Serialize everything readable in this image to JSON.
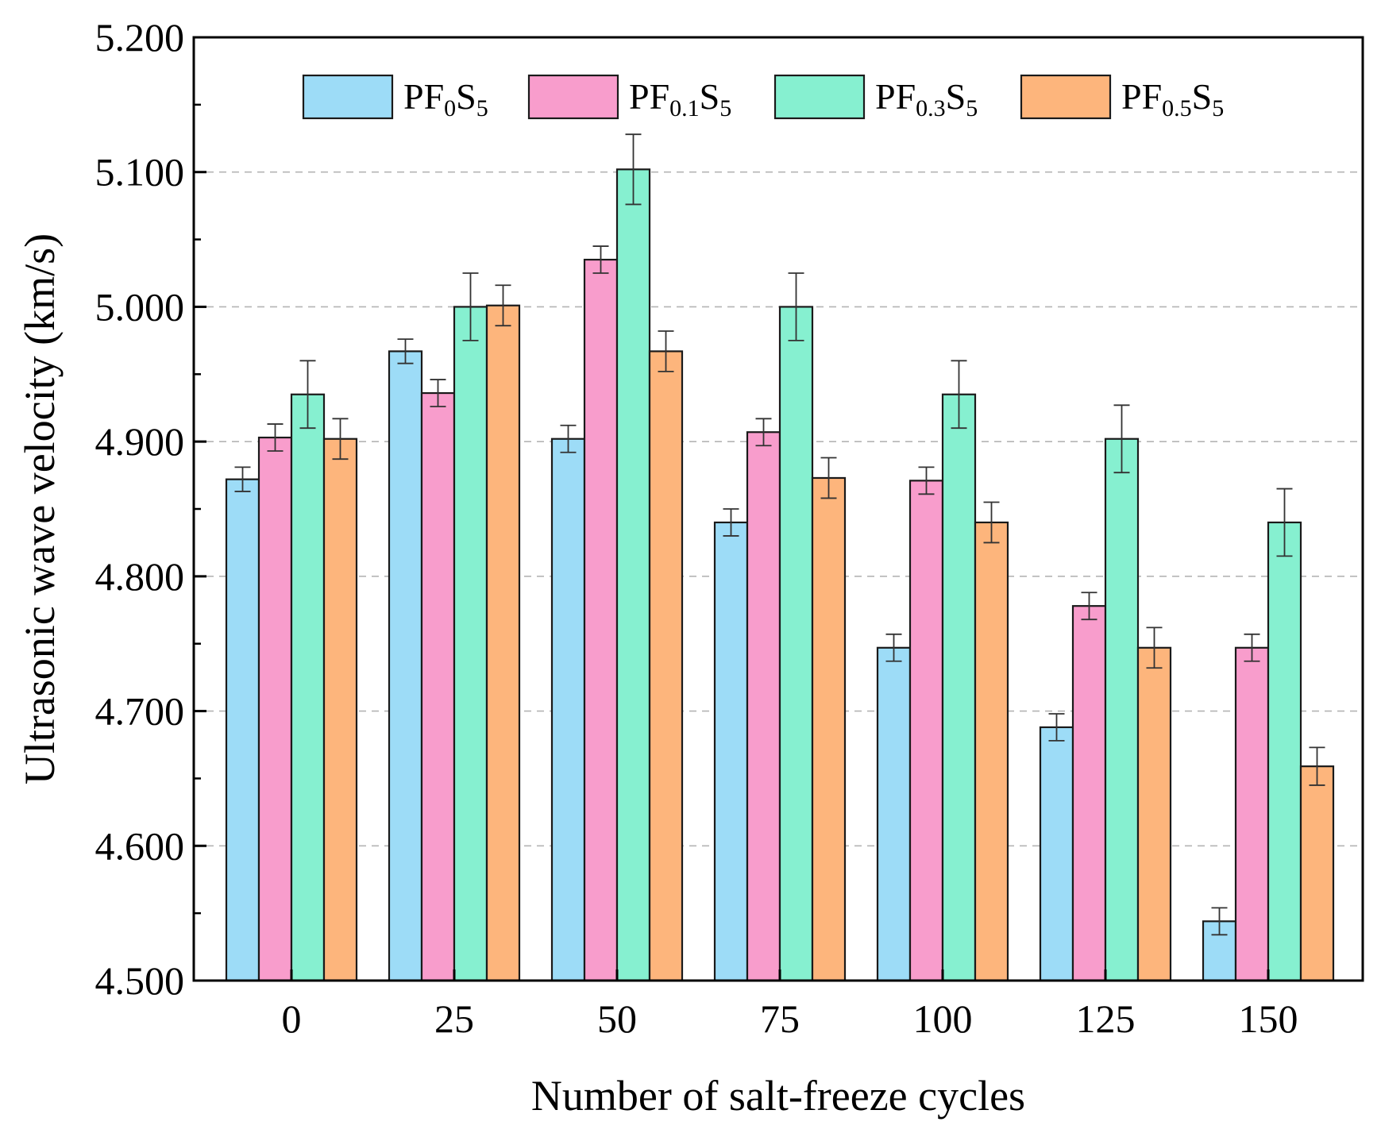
{
  "chart_data": {
    "type": "bar",
    "title": "",
    "xlabel": "Number of salt-freeze cycles",
    "ylabel": "Ultrasonic wave velocity (km/s)",
    "ylim": [
      4.5,
      5.2
    ],
    "y_ticks": [
      "4.500",
      "4.600",
      "4.700",
      "4.800",
      "4.900",
      "5.000",
      "5.100",
      "5.200"
    ],
    "y_tick_values": [
      4.5,
      4.6,
      4.7,
      4.8,
      4.9,
      5.0,
      5.1,
      5.2
    ],
    "grid": "horizontal dashed",
    "legend_position": "top",
    "categories": [
      "0",
      "25",
      "50",
      "75",
      "100",
      "125",
      "150"
    ],
    "series": [
      {
        "name": "PF0S5",
        "label_parts": [
          {
            "t": "PF",
            "sub": false
          },
          {
            "t": "0",
            "sub": true
          },
          {
            "t": "S",
            "sub": false
          },
          {
            "t": "5",
            "sub": true
          }
        ],
        "color": "#9ddcf7",
        "values": [
          4.872,
          4.967,
          4.902,
          4.84,
          4.747,
          4.688,
          4.544
        ],
        "errors": [
          0.009,
          0.009,
          0.01,
          0.01,
          0.01,
          0.01,
          0.01
        ]
      },
      {
        "name": "PF0.1S5",
        "label_parts": [
          {
            "t": "PF",
            "sub": false
          },
          {
            "t": "0.1",
            "sub": true
          },
          {
            "t": "S",
            "sub": false
          },
          {
            "t": "5",
            "sub": true
          }
        ],
        "color": "#f89dcc",
        "values": [
          4.903,
          4.936,
          5.035,
          4.907,
          4.871,
          4.778,
          4.747
        ],
        "errors": [
          0.01,
          0.01,
          0.01,
          0.01,
          0.01,
          0.01,
          0.01
        ]
      },
      {
        "name": "PF0.3S5",
        "label_parts": [
          {
            "t": "PF",
            "sub": false
          },
          {
            "t": "0.3",
            "sub": true
          },
          {
            "t": "S",
            "sub": false
          },
          {
            "t": "5",
            "sub": true
          }
        ],
        "color": "#86f0d0",
        "values": [
          4.935,
          5.0,
          5.102,
          5.0,
          4.935,
          4.902,
          4.84
        ],
        "errors": [
          0.025,
          0.025,
          0.026,
          0.025,
          0.025,
          0.025,
          0.025
        ]
      },
      {
        "name": "PF0.5S5",
        "label_parts": [
          {
            "t": "PF",
            "sub": false
          },
          {
            "t": "0.5",
            "sub": true
          },
          {
            "t": "S",
            "sub": false
          },
          {
            "t": "5",
            "sub": true
          }
        ],
        "color": "#fdb57c",
        "values": [
          4.902,
          5.001,
          4.967,
          4.873,
          4.84,
          4.747,
          4.659
        ],
        "errors": [
          0.015,
          0.015,
          0.015,
          0.015,
          0.015,
          0.015,
          0.014
        ]
      }
    ]
  }
}
